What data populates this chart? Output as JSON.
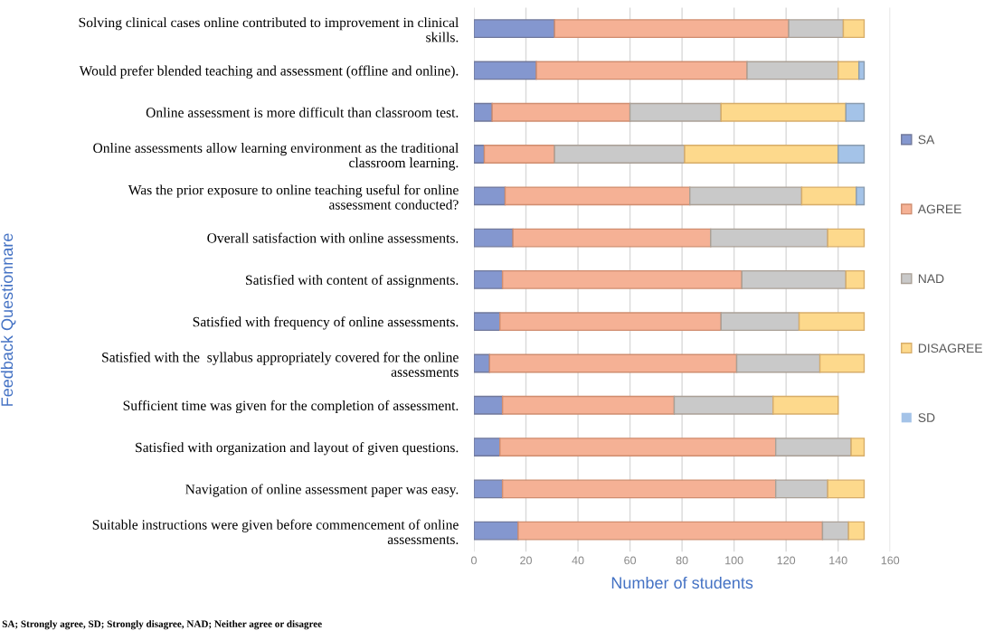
{
  "chart_data": {
    "type": "bar",
    "orientation": "horizontal",
    "stacked": true,
    "xlabel": "Number of students",
    "ylabel": "Feedback Questionnare",
    "categories": [
      "Solving clinical cases online contributed to improvement in clinical\nskills.",
      "Would prefer blended teaching and assessment (offline and online).",
      "Online assessment is more difficult than classroom test.",
      "Online assessments allow learning environment as the traditional\nclassroom learning.",
      "Was the prior exposure to online teaching useful for online\nassessment conducted?",
      "Overall satisfaction with online assessments.",
      "Satisfied with content of assignments.",
      "Satisfied with frequency of online assessments.",
      "Satisfied with the  syllabus appropriately covered for the online\nassessments",
      "Sufficient time was given for the completion of assessment.",
      "Satisfied with organization and layout of given questions.",
      "Navigation of online assessment paper was easy.",
      "Suitable instructions were given before commencement of online\nassessments."
    ],
    "series": [
      {
        "name": "SA",
        "color": "#8497cf",
        "values": [
          31,
          24,
          7,
          4,
          12,
          15,
          11,
          10,
          6,
          11,
          10,
          11,
          17
        ]
      },
      {
        "name": "AGREE",
        "color": "#f5b195",
        "values": [
          90,
          81,
          53,
          27,
          71,
          76,
          92,
          85,
          95,
          66,
          106,
          105,
          117
        ]
      },
      {
        "name": "NAD",
        "color": "#c9c9c9",
        "values": [
          21,
          35,
          35,
          50,
          43,
          45,
          40,
          30,
          32,
          38,
          29,
          20,
          10
        ]
      },
      {
        "name": "DISAGREE",
        "color": "#fdd98c",
        "values": [
          8,
          8,
          48,
          59,
          21,
          14,
          7,
          25,
          17,
          25,
          5,
          14,
          6
        ]
      },
      {
        "name": "SD",
        "color": "#a4c3e8",
        "values": [
          0,
          2,
          7,
          10,
          3,
          0,
          0,
          0,
          0,
          0,
          0,
          0,
          0
        ]
      }
    ],
    "xlim": [
      0,
      160
    ],
    "xticks": [
      0,
      20,
      40,
      60,
      80,
      100,
      120,
      140,
      160
    ],
    "grid": "x",
    "legend": "right",
    "annotations": [
      "SA; Strongly agree, SD; Strongly disagree, NAD; Neither agree or disagree"
    ]
  }
}
